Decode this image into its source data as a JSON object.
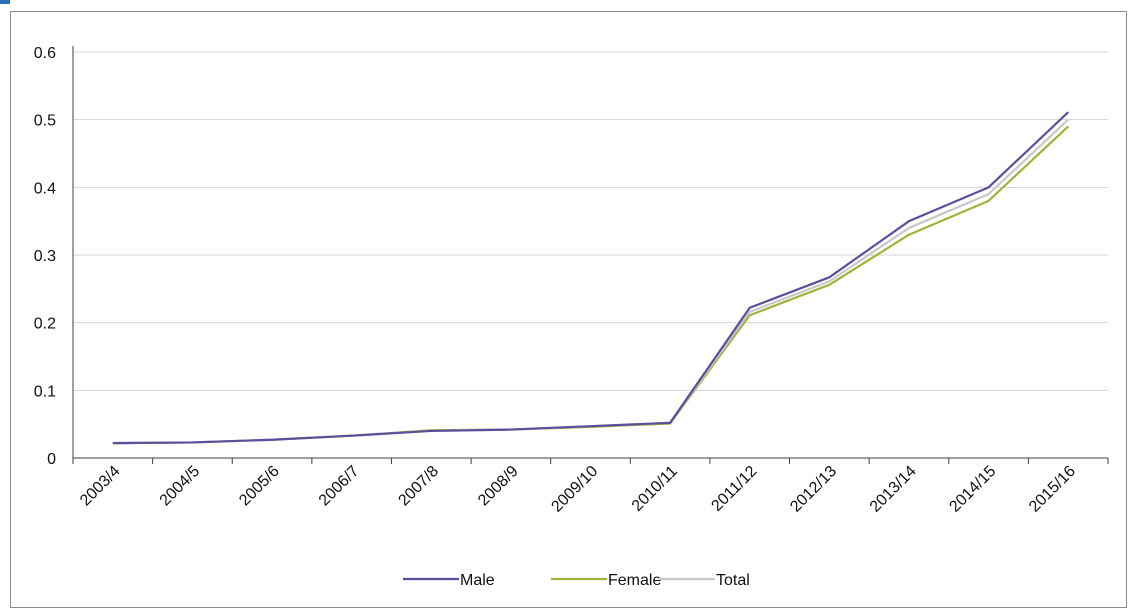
{
  "chart_data": {
    "type": "line",
    "categories": [
      "2003/4",
      "2004/5",
      "2005/6",
      "2006/7",
      "2007/8",
      "2008/9",
      "2009/10",
      "2010/11",
      "2011/12",
      "2012/13",
      "2013/14",
      "2014/15",
      "2015/16"
    ],
    "series": [
      {
        "name": "Male",
        "color": "#5b4e9e",
        "values": [
          0.022,
          0.023,
          0.027,
          0.033,
          0.04,
          0.042,
          0.047,
          0.052,
          0.222,
          0.267,
          0.35,
          0.4,
          0.511
        ]
      },
      {
        "name": "Female",
        "color": "#9bb537",
        "values": [
          0.022,
          0.023,
          0.027,
          0.033,
          0.041,
          0.042,
          0.046,
          0.051,
          0.211,
          0.256,
          0.33,
          0.38,
          0.49
        ]
      },
      {
        "name": "Total",
        "color": "#c8c8c8",
        "values": [
          0.022,
          0.023,
          0.027,
          0.033,
          0.04,
          0.042,
          0.047,
          0.052,
          0.216,
          0.261,
          0.34,
          0.39,
          0.5
        ]
      }
    ],
    "y_ticks": [
      "0",
      "0.1",
      "0.2",
      "0.3",
      "0.4",
      "0.5",
      "0.6"
    ],
    "ylim": [
      0,
      0.6
    ],
    "grid": true,
    "legend_position": "bottom"
  }
}
